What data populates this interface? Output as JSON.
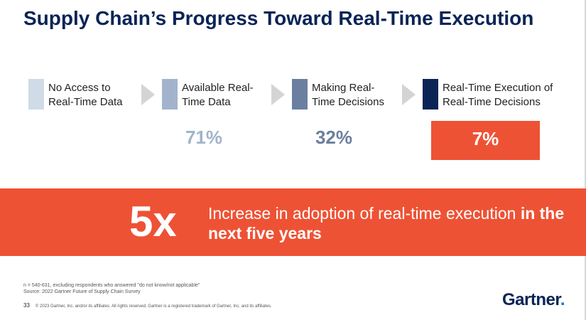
{
  "title": "Supply Chain’s Progress Toward Real-Time Execution",
  "steps": [
    {
      "label": "No Access to Real-Time Data",
      "color": "#cfdbe6"
    },
    {
      "label": "Available Real-Time Data",
      "color": "#a2b3cb",
      "value": "71%"
    },
    {
      "label": "Making Real-Time Decisions",
      "color": "#6b7fa0",
      "value": "32%"
    },
    {
      "label": "Real-Time Execution of Real-Time Decisions",
      "color": "#0a2456",
      "value": "7%"
    }
  ],
  "banner": {
    "big": "5x",
    "text": "Increase in adoption of real-time execution ",
    "bold": "in the next five years"
  },
  "notes": {
    "n": "n = 540-631, excluding respondents who answered \"do not know/not applicable\"",
    "source": "Source: 2022 Gartner Future of Supply Chain Survey"
  },
  "footer": {
    "page": "33",
    "copyright": "© 2023 Gartner, Inc. and/or its affiliates. All rights reserved. Gartner is a registered trademark of Gartner, Inc. and its affiliates."
  },
  "logo": "Gartner"
}
